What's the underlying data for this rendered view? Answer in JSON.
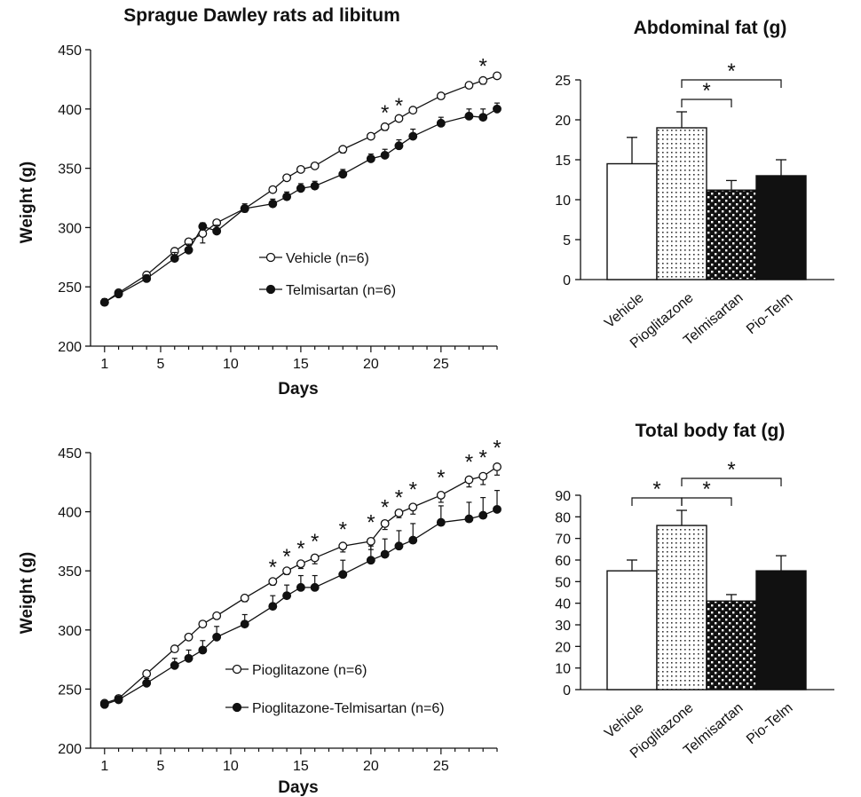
{
  "chart_data": [
    {
      "type": "line",
      "title": "Sprague Dawley rats ad libitum",
      "xlabel": "Days",
      "ylabel": "Weight (g)",
      "xlim": [
        0,
        29
      ],
      "ylim": [
        200,
        450
      ],
      "xticks": [
        1,
        5,
        10,
        15,
        20,
        25
      ],
      "yticks": [
        200,
        250,
        300,
        350,
        400,
        450
      ],
      "series": [
        {
          "name": "Vehicle (n=6)",
          "marker": "open",
          "points": [
            [
              1,
              237,
              2
            ],
            [
              2,
              245,
              2
            ],
            [
              4,
              260,
              2
            ],
            [
              6,
              280,
              2
            ],
            [
              7,
              288,
              3
            ],
            [
              8,
              295,
              8
            ],
            [
              9,
              304,
              2
            ],
            [
              11,
              316,
              3
            ],
            [
              13,
              332,
              2
            ],
            [
              14,
              342,
              2
            ],
            [
              15,
              349,
              2
            ],
            [
              16,
              352,
              2
            ],
            [
              18,
              366,
              3
            ],
            [
              20,
              377,
              2
            ],
            [
              21,
              385,
              3
            ],
            [
              22,
              392,
              2
            ],
            [
              23,
              399,
              2
            ],
            [
              25,
              411,
              2
            ],
            [
              27,
              420,
              2
            ],
            [
              28,
              424,
              3
            ],
            [
              29,
              428,
              2
            ]
          ]
        },
        {
          "name": "Telmisartan (n=6)",
          "marker": "filled",
          "points": [
            [
              1,
              237,
              3
            ],
            [
              2,
              244,
              3
            ],
            [
              4,
              257,
              3
            ],
            [
              6,
              274,
              5
            ],
            [
              7,
              281,
              5
            ],
            [
              8,
              301,
              3
            ],
            [
              9,
              297,
              5
            ],
            [
              11,
              316,
              4
            ],
            [
              13,
              320,
              4
            ],
            [
              14,
              326,
              4
            ],
            [
              15,
              333,
              4
            ],
            [
              16,
              335,
              4
            ],
            [
              18,
              345,
              4
            ],
            [
              20,
              358,
              4
            ],
            [
              21,
              361,
              5
            ],
            [
              22,
              369,
              5
            ],
            [
              23,
              377,
              6
            ],
            [
              25,
              388,
              5
            ],
            [
              27,
              394,
              6
            ],
            [
              28,
              393,
              7
            ],
            [
              29,
              400,
              5
            ]
          ]
        }
      ],
      "annotations": [
        {
          "text": "*",
          "x": 21
        },
        {
          "text": "*",
          "x": 22
        },
        {
          "text": "*",
          "x": 28
        }
      ]
    },
    {
      "type": "line",
      "title": "",
      "xlabel": "Days",
      "ylabel": "Weight (g)",
      "xlim": [
        0,
        29
      ],
      "ylim": [
        200,
        450
      ],
      "xticks": [
        1,
        5,
        10,
        15,
        20,
        25
      ],
      "yticks": [
        200,
        250,
        300,
        350,
        400,
        450
      ],
      "series": [
        {
          "name": "Pioglitazone (n=6)",
          "marker": "open",
          "points": [
            [
              1,
              238,
              2
            ],
            [
              2,
              242,
              2
            ],
            [
              4,
              263,
              2
            ],
            [
              6,
              284,
              2
            ],
            [
              7,
              294,
              2
            ],
            [
              8,
              305,
              2
            ],
            [
              9,
              312,
              2
            ],
            [
              11,
              327,
              3
            ],
            [
              13,
              341,
              3
            ],
            [
              14,
              350,
              3
            ],
            [
              15,
              356,
              4
            ],
            [
              16,
              361,
              5
            ],
            [
              18,
              371,
              5
            ],
            [
              20,
              375,
              7
            ],
            [
              21,
              390,
              5
            ],
            [
              22,
              399,
              4
            ],
            [
              23,
              404,
              6
            ],
            [
              25,
              414,
              6
            ],
            [
              27,
              427,
              6
            ],
            [
              28,
              430,
              7
            ],
            [
              29,
              438,
              7
            ]
          ]
        },
        {
          "name": "Pioglitazone-Telmisartan (n=6)",
          "marker": "filled",
          "points": [
            [
              1,
              237,
              2
            ],
            [
              2,
              241,
              2
            ],
            [
              4,
              255,
              4
            ],
            [
              6,
              270,
              6
            ],
            [
              7,
              276,
              7
            ],
            [
              8,
              283,
              8
            ],
            [
              9,
              294,
              9
            ],
            [
              11,
              305,
              8
            ],
            [
              13,
              320,
              9
            ],
            [
              14,
              329,
              9
            ],
            [
              15,
              336,
              10
            ],
            [
              16,
              336,
              10
            ],
            [
              18,
              347,
              12
            ],
            [
              20,
              359,
              12
            ],
            [
              21,
              364,
              13
            ],
            [
              22,
              371,
              13
            ],
            [
              23,
              376,
              14
            ],
            [
              25,
              391,
              14
            ],
            [
              27,
              394,
              14
            ],
            [
              28,
              397,
              15
            ],
            [
              29,
              402,
              16
            ]
          ]
        }
      ],
      "annotations": [
        {
          "text": "*",
          "x": 13
        },
        {
          "text": "*",
          "x": 14
        },
        {
          "text": "*",
          "x": 15
        },
        {
          "text": "*",
          "x": 16
        },
        {
          "text": "*",
          "x": 18
        },
        {
          "text": "*",
          "x": 20
        },
        {
          "text": "*",
          "x": 21
        },
        {
          "text": "*",
          "x": 22
        },
        {
          "text": "*",
          "x": 23
        },
        {
          "text": "*",
          "x": 25
        },
        {
          "text": "*",
          "x": 27
        },
        {
          "text": "*",
          "x": 28
        },
        {
          "text": "*",
          "x": 29
        }
      ]
    },
    {
      "type": "bar",
      "title": "Abdominal fat (g)",
      "categories": [
        "Vehicle",
        "Pioglitazone",
        "Telmisartan",
        "Pio-Telm"
      ],
      "values": [
        14.5,
        19,
        11.2,
        13
      ],
      "errors": [
        3.3,
        2,
        1.2,
        2
      ],
      "patterns": [
        "white",
        "dots",
        "checker",
        "black"
      ],
      "ylim": [
        0,
        25
      ],
      "yticks": [
        0,
        5,
        10,
        15,
        20,
        25
      ],
      "significance": [
        {
          "from": 1,
          "to": 2,
          "label": "*"
        },
        {
          "from": 1,
          "to": 3,
          "label": "*"
        }
      ]
    },
    {
      "type": "bar",
      "title": "Total body fat (g)",
      "categories": [
        "Vehicle",
        "Pioglitazone",
        "Telmisartan",
        "Pio-Telm"
      ],
      "values": [
        55,
        76,
        41,
        55
      ],
      "errors": [
        5,
        7,
        3,
        7
      ],
      "patterns": [
        "white",
        "dots",
        "checker",
        "black"
      ],
      "ylim": [
        0,
        90
      ],
      "yticks": [
        0,
        10,
        20,
        30,
        40,
        50,
        60,
        70,
        80,
        90
      ],
      "significance": [
        {
          "from": 0,
          "to": 1,
          "label": "*"
        },
        {
          "from": 1,
          "to": 2,
          "label": "*"
        },
        {
          "from": 1,
          "to": 3,
          "label": "*"
        }
      ]
    }
  ]
}
